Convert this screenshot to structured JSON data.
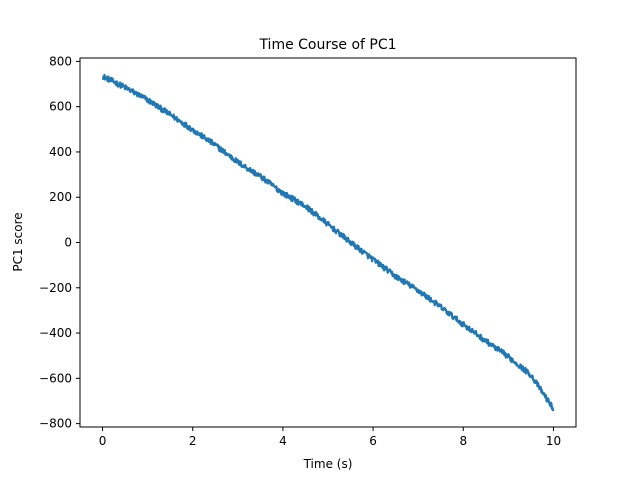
{
  "chart_data": {
    "type": "line",
    "title": "Time Course of PC1",
    "xlabel": "Time (s)",
    "ylabel": "PC1 score",
    "xlim": [
      -0.5,
      10.5
    ],
    "ylim": [
      -815,
      815
    ],
    "xticks": [
      0,
      2,
      4,
      6,
      8,
      10
    ],
    "yticks": [
      -800,
      -600,
      -400,
      -200,
      0,
      200,
      400,
      600,
      800
    ],
    "xtick_labels": [
      "0",
      "2",
      "4",
      "6",
      "8",
      "10"
    ],
    "ytick_labels": [
      "−800",
      "−600",
      "−400",
      "−200",
      "0",
      "200",
      "400",
      "600",
      "800"
    ],
    "grid": false,
    "legend": "none",
    "series": [
      {
        "color": "#1f77b4",
        "x": [
          0,
          0.5,
          1,
          1.5,
          2,
          2.5,
          3,
          3.5,
          4,
          4.5,
          5,
          5.5,
          6,
          6.5,
          7,
          7.5,
          8,
          8.5,
          9,
          9.5,
          10
        ],
        "y": [
          735,
          685,
          630,
          565,
          498,
          430,
          355,
          292,
          218,
          160,
          80,
          0,
          -75,
          -150,
          -212,
          -285,
          -362,
          -435,
          -505,
          -585,
          -735
        ],
        "noise_amplitude": 12
      }
    ]
  }
}
